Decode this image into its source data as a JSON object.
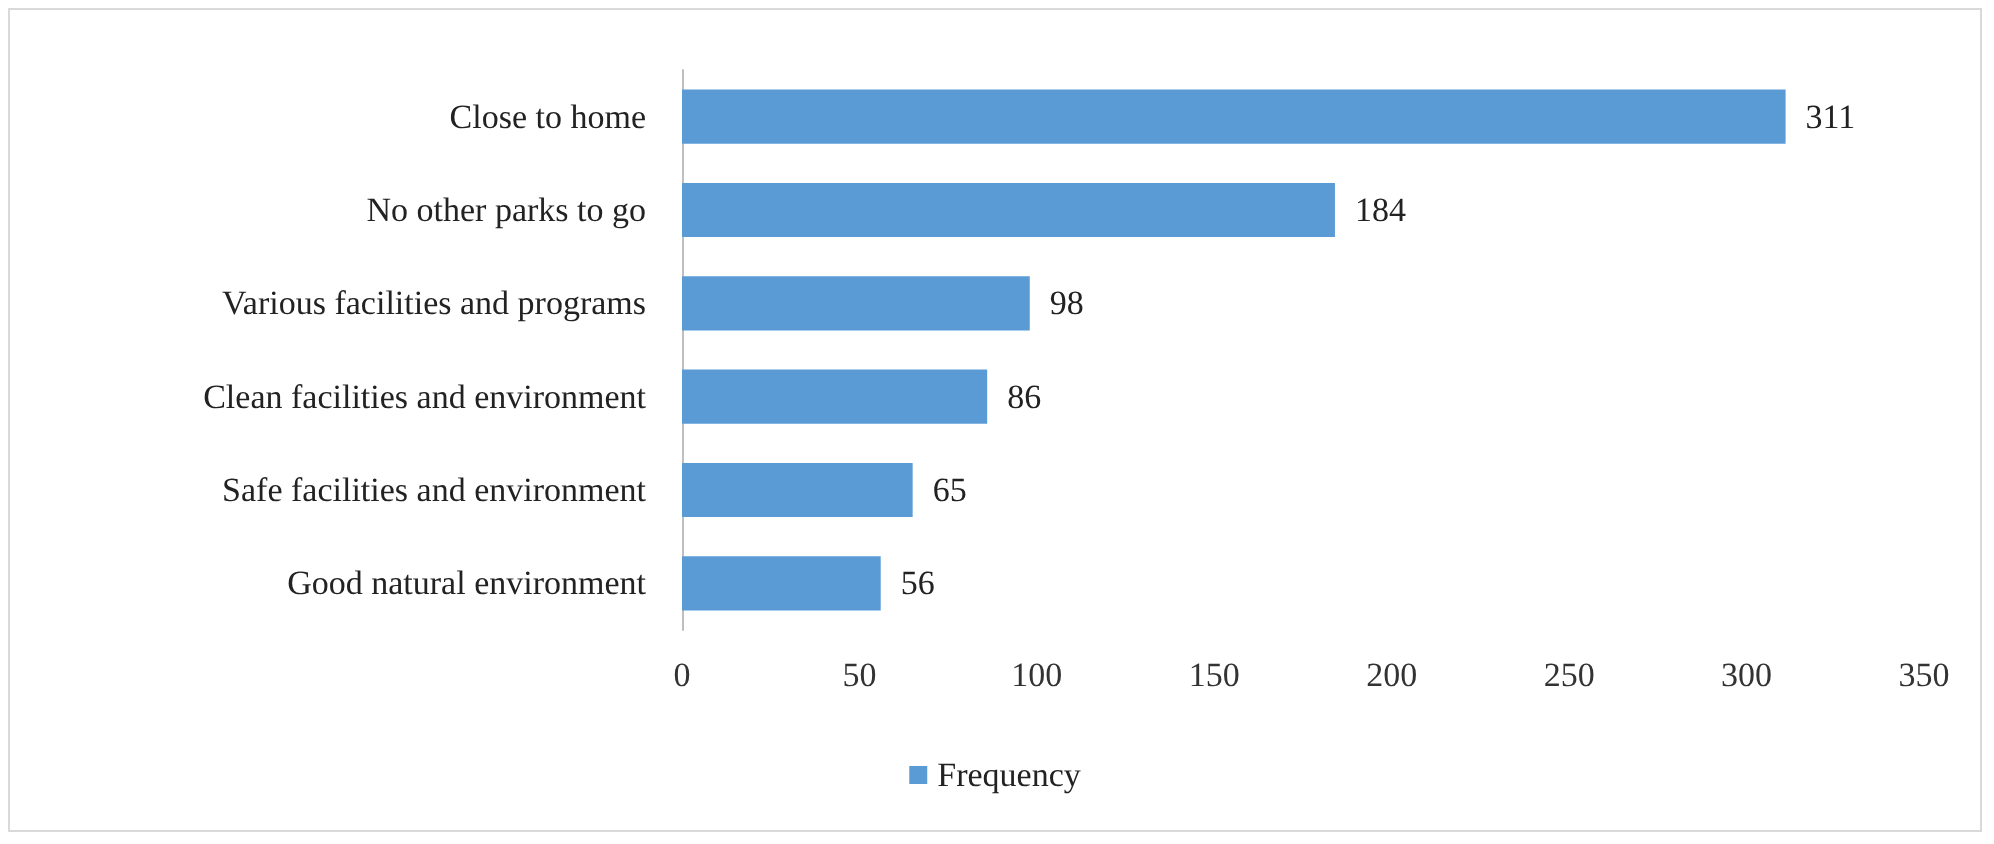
{
  "chart_data": {
    "type": "bar",
    "orientation": "horizontal",
    "categories": [
      "Close to home",
      "No other parks to go",
      "Various facilities and programs",
      "Clean facilities and environment",
      "Safe facilities and environment",
      "Good natural environment"
    ],
    "series": [
      {
        "name": "Frequency",
        "color": "#5b9bd5",
        "values": [
          311,
          184,
          98,
          86,
          65,
          56
        ]
      }
    ],
    "xlim": [
      0,
      350
    ],
    "xticks": [
      0,
      50,
      100,
      150,
      200,
      250,
      300,
      350
    ],
    "grid": false,
    "legend": "bottom",
    "data_labels": true
  }
}
